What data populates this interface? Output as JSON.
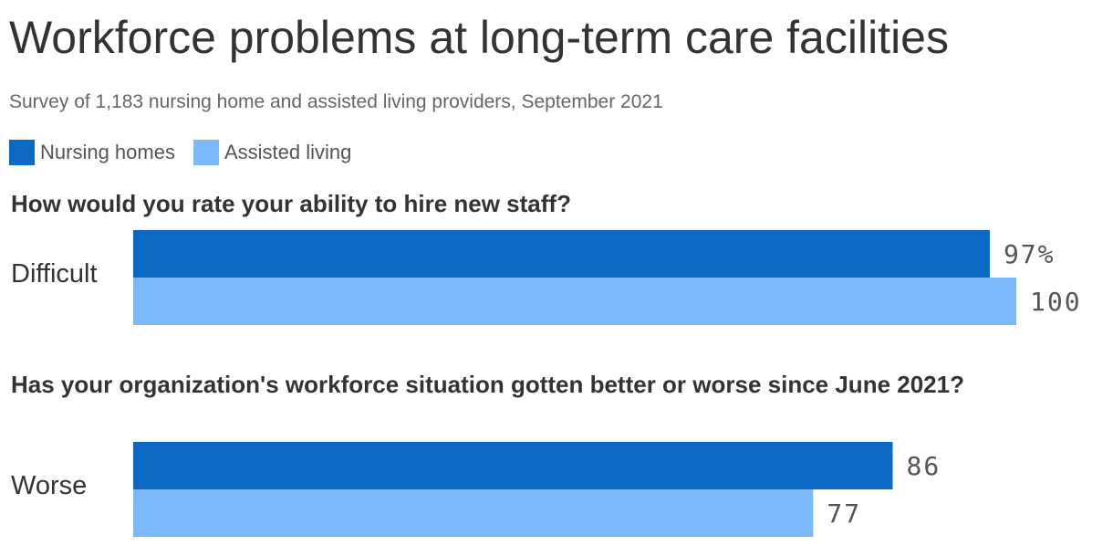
{
  "title": "Workforce problems at long-term care facilities",
  "subtitle": "Survey of 1,183 nursing home and assisted living providers, September 2021",
  "legend": {
    "nursing_homes": "Nursing homes",
    "assisted_living": "Assisted living"
  },
  "colors": {
    "nursing_homes": "#0b69c4",
    "assisted_living": "#7db8fb"
  },
  "chart_data": [
    {
      "type": "bar",
      "orientation": "horizontal",
      "title": "How would you rate your ability to hire new staff?",
      "categories": [
        "Difficult"
      ],
      "series": [
        {
          "name": "Nursing homes",
          "values": [
            97
          ],
          "labels": [
            "97%"
          ]
        },
        {
          "name": "Assisted living",
          "values": [
            100
          ],
          "labels": [
            "100"
          ]
        }
      ],
      "xlim": [
        0,
        100
      ],
      "grid": false,
      "legend_position": "top-left"
    },
    {
      "type": "bar",
      "orientation": "horizontal",
      "title": "Has your organization's workforce situation gotten better or worse since June 2021?",
      "categories": [
        "Worse"
      ],
      "series": [
        {
          "name": "Nursing homes",
          "values": [
            86
          ],
          "labels": [
            "86"
          ]
        },
        {
          "name": "Assisted living",
          "values": [
            77
          ],
          "labels": [
            "77"
          ]
        }
      ],
      "xlim": [
        0,
        100
      ],
      "grid": false,
      "legend_position": "top-left"
    }
  ]
}
